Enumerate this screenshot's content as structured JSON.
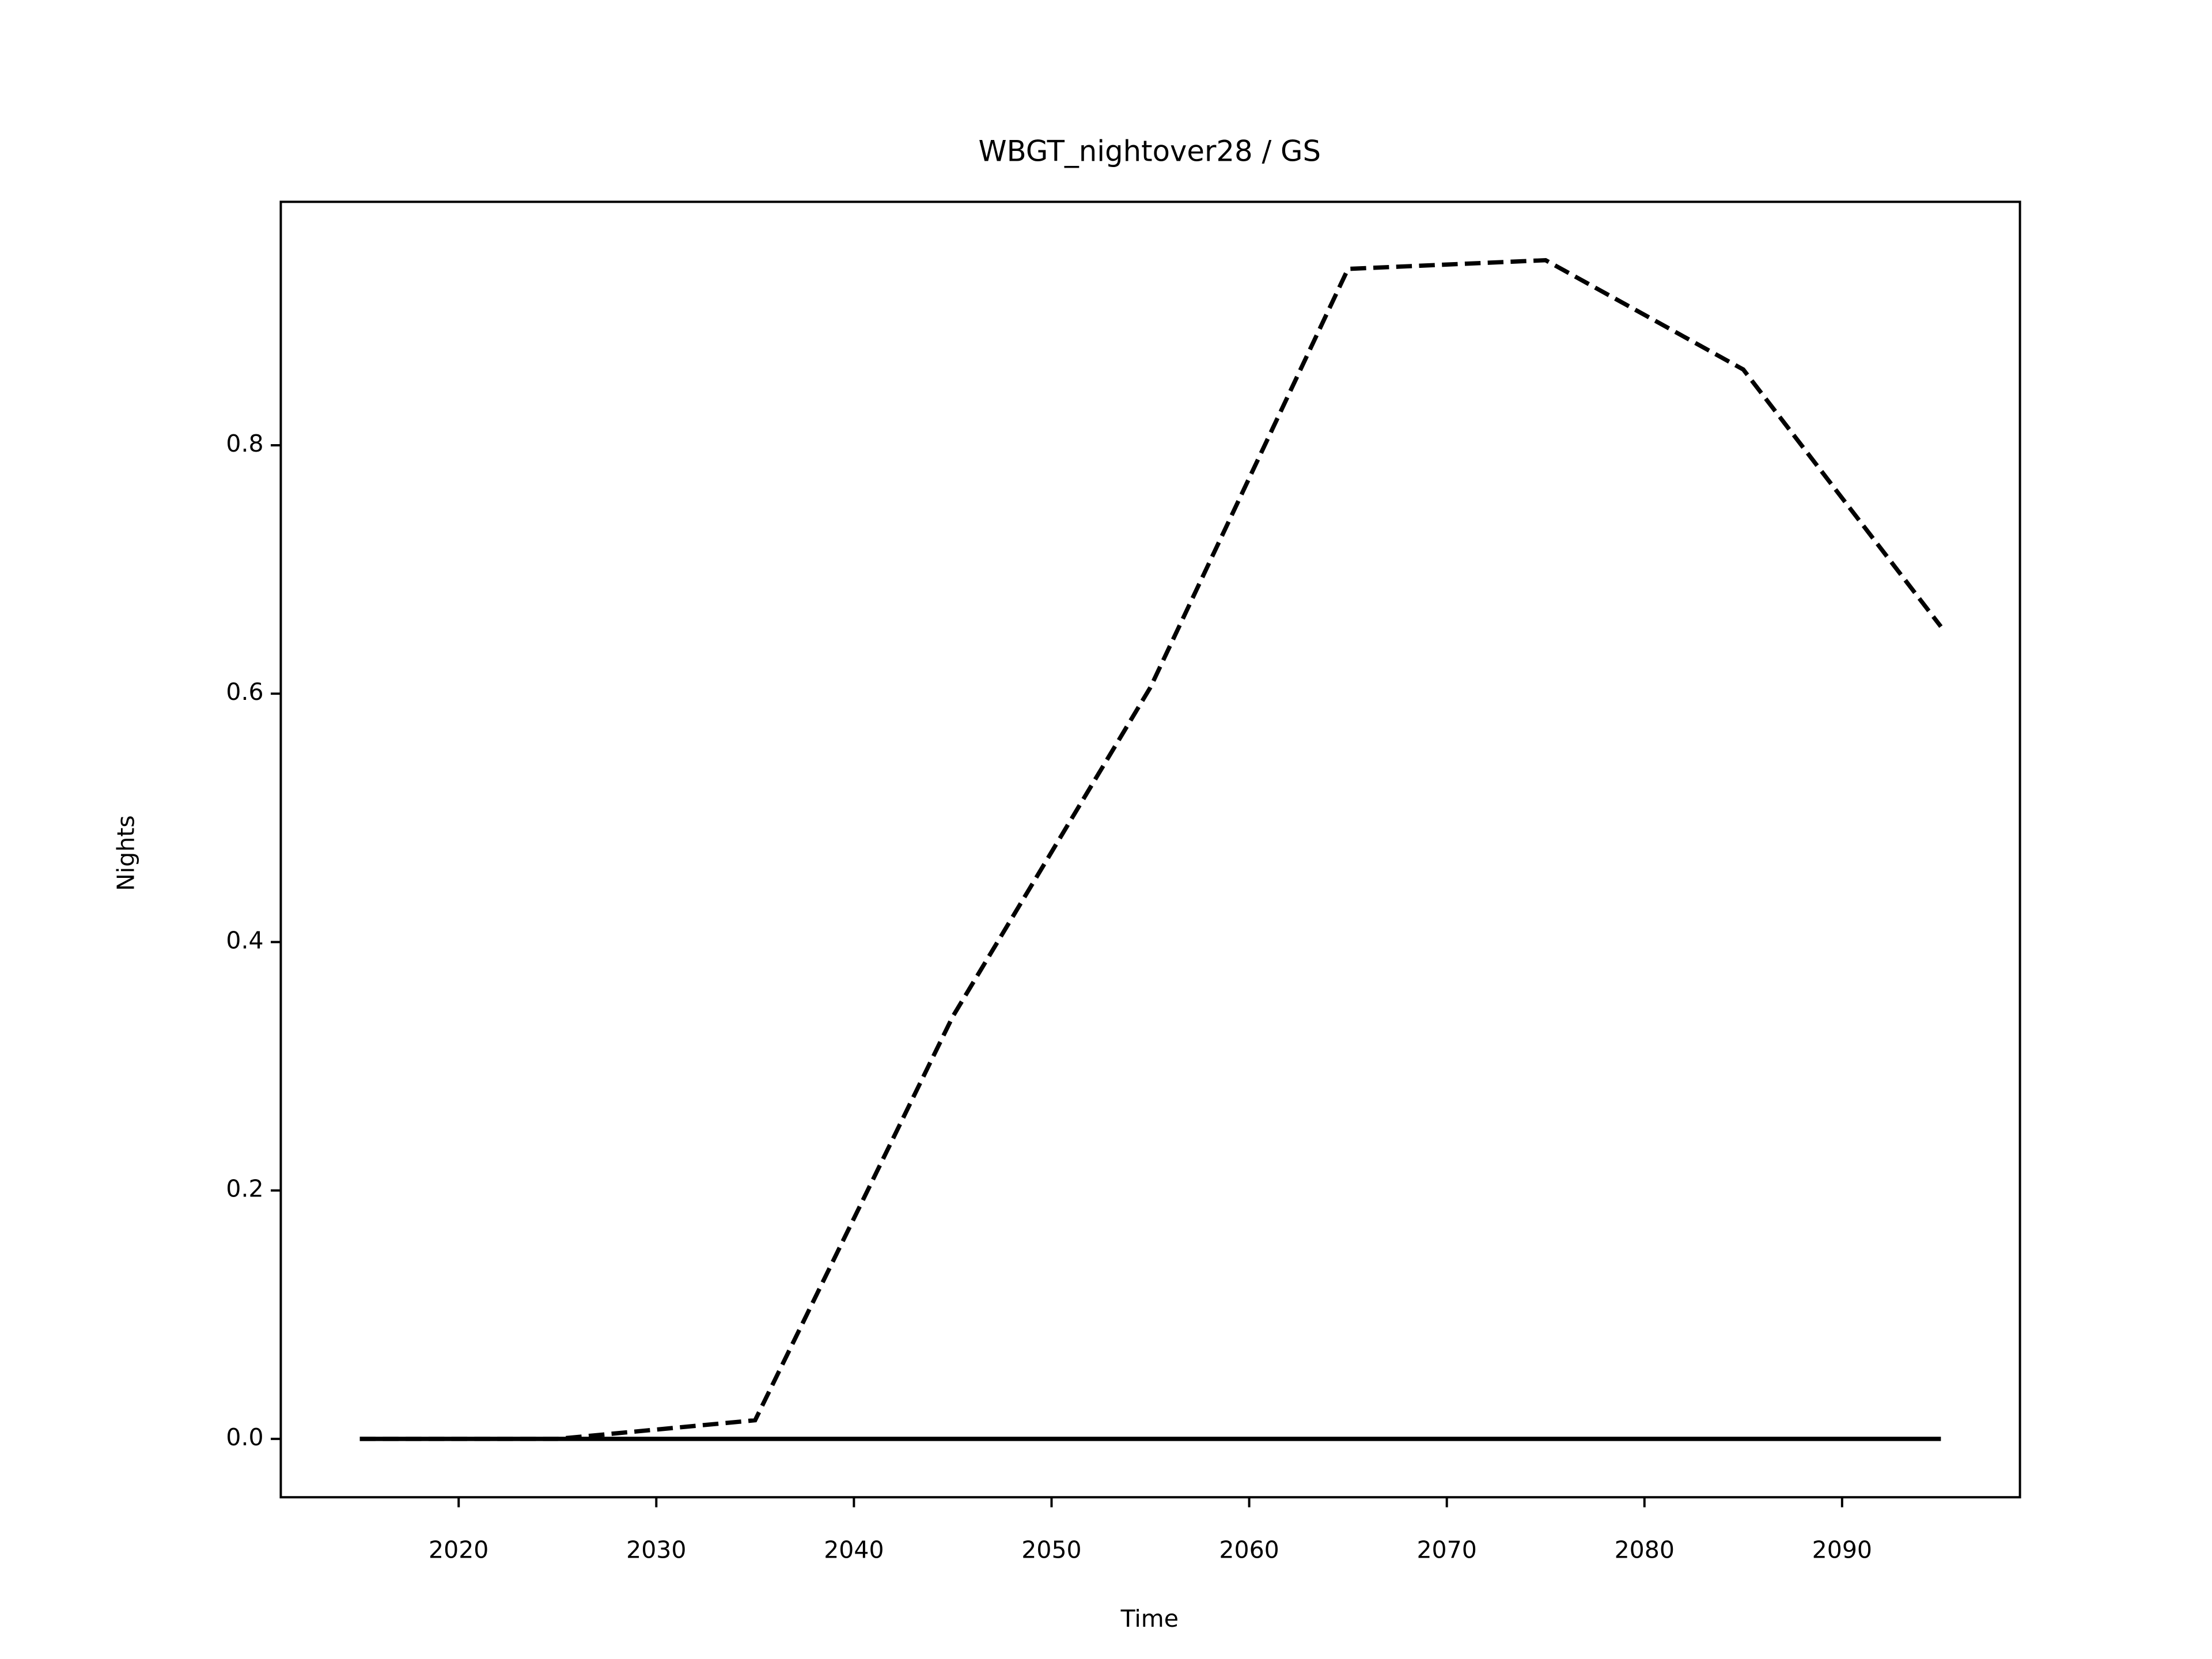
{
  "chart_data": {
    "type": "line",
    "title": "WBGT_nightover28 / GS",
    "xlabel": "Time",
    "ylabel": "Nights",
    "x": [
      2015,
      2025,
      2035,
      2045,
      2055,
      2065,
      2075,
      2085,
      2095
    ],
    "series": [
      {
        "color": "#000000",
        "linestyle": "dashed",
        "values": [
          0,
          0,
          0.015,
          0.34,
          0.605,
          0.942,
          0.949,
          0.861,
          0.654
        ]
      },
      {
        "color": "#000000",
        "linestyle": "solid",
        "values": [
          0,
          0,
          0,
          0,
          0,
          0,
          0,
          0,
          0
        ]
      }
    ],
    "xlim": [
      2011,
      2099
    ],
    "xticks": [
      2020,
      2030,
      2040,
      2050,
      2060,
      2070,
      2080,
      2090
    ],
    "ylim": [
      -0.047,
      0.996
    ],
    "yticks": [
      {
        "value": 0,
        "label": "0.0"
      },
      0.2,
      0.4,
      0.6,
      0.8
    ],
    "grid": false
  }
}
